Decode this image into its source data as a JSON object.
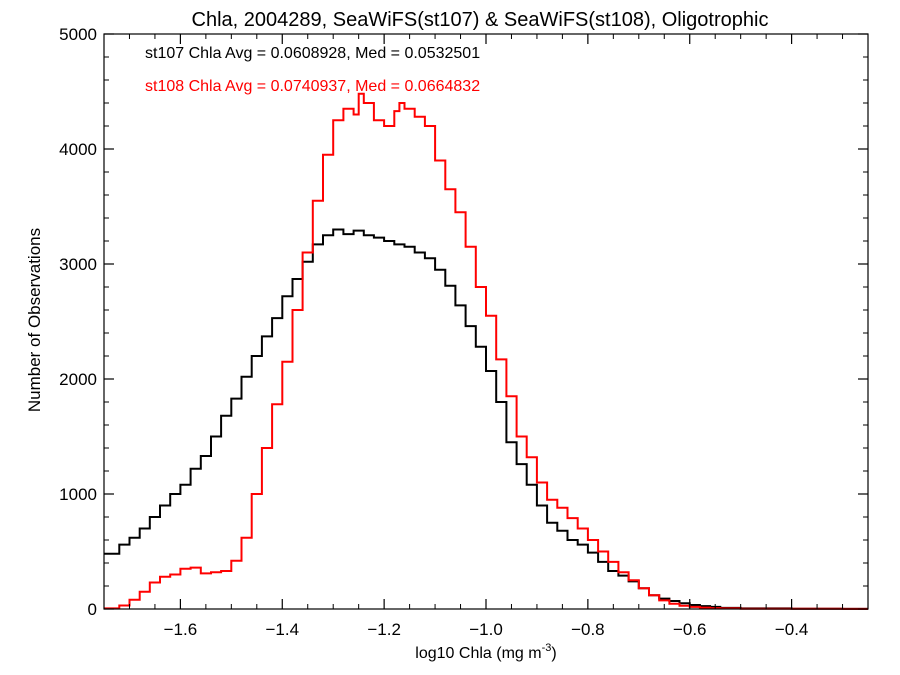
{
  "chart_data": {
    "type": "line",
    "title": "Chla, 2004289, SeaWiFS(st107) & SeaWiFS(st108), Oligotrophic",
    "xlabel": "log10 Chla (mg m",
    "xlabel_sup": "-3",
    "xlabel_tail": ")",
    "ylabel": "Number of Observations",
    "xlim": [
      -1.75,
      -0.25
    ],
    "ylim": [
      0,
      5000
    ],
    "xticks": [
      -1.6,
      -1.4,
      -1.2,
      -1.0,
      -0.8,
      -0.6,
      -0.4
    ],
    "xtick_labels": [
      "−1.6",
      "−1.4",
      "−1.2",
      "−1.0",
      "−0.8",
      "−0.6",
      "−0.4"
    ],
    "yticks": [
      0,
      1000,
      2000,
      3000,
      4000,
      5000
    ],
    "ytick_labels": [
      "0",
      "1000",
      "2000",
      "3000",
      "4000",
      "5000"
    ],
    "grid": false,
    "annotations": [
      {
        "text": "st107 Chla Avg = 0.0608928, Med = 0.0532501",
        "color": "#000000"
      },
      {
        "text": "st108 Chla Avg = 0.0740937, Med = 0.0664832",
        "color": "#ff0000"
      }
    ],
    "series": [
      {
        "name": "st107",
        "color": "#000000",
        "x": [
          -1.75,
          -1.72,
          -1.7,
          -1.68,
          -1.66,
          -1.64,
          -1.62,
          -1.6,
          -1.58,
          -1.56,
          -1.54,
          -1.52,
          -1.5,
          -1.48,
          -1.46,
          -1.44,
          -1.42,
          -1.4,
          -1.38,
          -1.36,
          -1.34,
          -1.32,
          -1.3,
          -1.28,
          -1.26,
          -1.24,
          -1.22,
          -1.2,
          -1.18,
          -1.16,
          -1.14,
          -1.12,
          -1.1,
          -1.08,
          -1.06,
          -1.04,
          -1.02,
          -1.0,
          -0.98,
          -0.96,
          -0.94,
          -0.92,
          -0.9,
          -0.88,
          -0.86,
          -0.84,
          -0.82,
          -0.8,
          -0.78,
          -0.76,
          -0.74,
          -0.72,
          -0.7,
          -0.68,
          -0.66,
          -0.64,
          -0.62,
          -0.6,
          -0.58,
          -0.56,
          -0.54,
          -0.5,
          -0.4,
          -0.3,
          -0.25
        ],
        "y": [
          480,
          560,
          620,
          700,
          800,
          900,
          1000,
          1080,
          1220,
          1330,
          1500,
          1680,
          1830,
          2020,
          2200,
          2370,
          2530,
          2720,
          2870,
          3020,
          3170,
          3250,
          3300,
          3260,
          3290,
          3250,
          3230,
          3200,
          3170,
          3150,
          3100,
          3050,
          2950,
          2810,
          2640,
          2460,
          2280,
          2070,
          1800,
          1450,
          1260,
          1080,
          900,
          750,
          680,
          600,
          560,
          490,
          410,
          330,
          290,
          240,
          180,
          120,
          90,
          70,
          50,
          35,
          25,
          18,
          10,
          5,
          2,
          1,
          1
        ]
      },
      {
        "name": "st108",
        "color": "#ff0000",
        "x": [
          -1.75,
          -1.72,
          -1.7,
          -1.68,
          -1.66,
          -1.64,
          -1.62,
          -1.6,
          -1.58,
          -1.56,
          -1.54,
          -1.52,
          -1.5,
          -1.48,
          -1.46,
          -1.44,
          -1.42,
          -1.4,
          -1.38,
          -1.36,
          -1.34,
          -1.32,
          -1.3,
          -1.28,
          -1.26,
          -1.25,
          -1.24,
          -1.22,
          -1.2,
          -1.18,
          -1.17,
          -1.16,
          -1.14,
          -1.12,
          -1.1,
          -1.08,
          -1.06,
          -1.04,
          -1.02,
          -1.0,
          -0.98,
          -0.96,
          -0.94,
          -0.92,
          -0.9,
          -0.88,
          -0.86,
          -0.84,
          -0.82,
          -0.8,
          -0.78,
          -0.76,
          -0.74,
          -0.72,
          -0.7,
          -0.68,
          -0.66,
          -0.64,
          -0.62,
          -0.6,
          -0.58,
          -0.56,
          -0.54,
          -0.5,
          -0.4,
          -0.3,
          -0.25
        ],
        "y": [
          5,
          30,
          80,
          150,
          230,
          280,
          300,
          350,
          360,
          310,
          320,
          330,
          420,
          620,
          1000,
          1400,
          1780,
          2150,
          2600,
          3100,
          3550,
          3950,
          4250,
          4350,
          4300,
          4480,
          4400,
          4250,
          4200,
          4330,
          4400,
          4350,
          4280,
          4200,
          3900,
          3650,
          3450,
          3150,
          2800,
          2550,
          2170,
          1850,
          1500,
          1320,
          1100,
          950,
          880,
          790,
          700,
          600,
          500,
          410,
          320,
          250,
          180,
          120,
          75,
          45,
          28,
          18,
          12,
          8,
          5,
          3,
          2,
          1,
          1
        ]
      }
    ]
  }
}
